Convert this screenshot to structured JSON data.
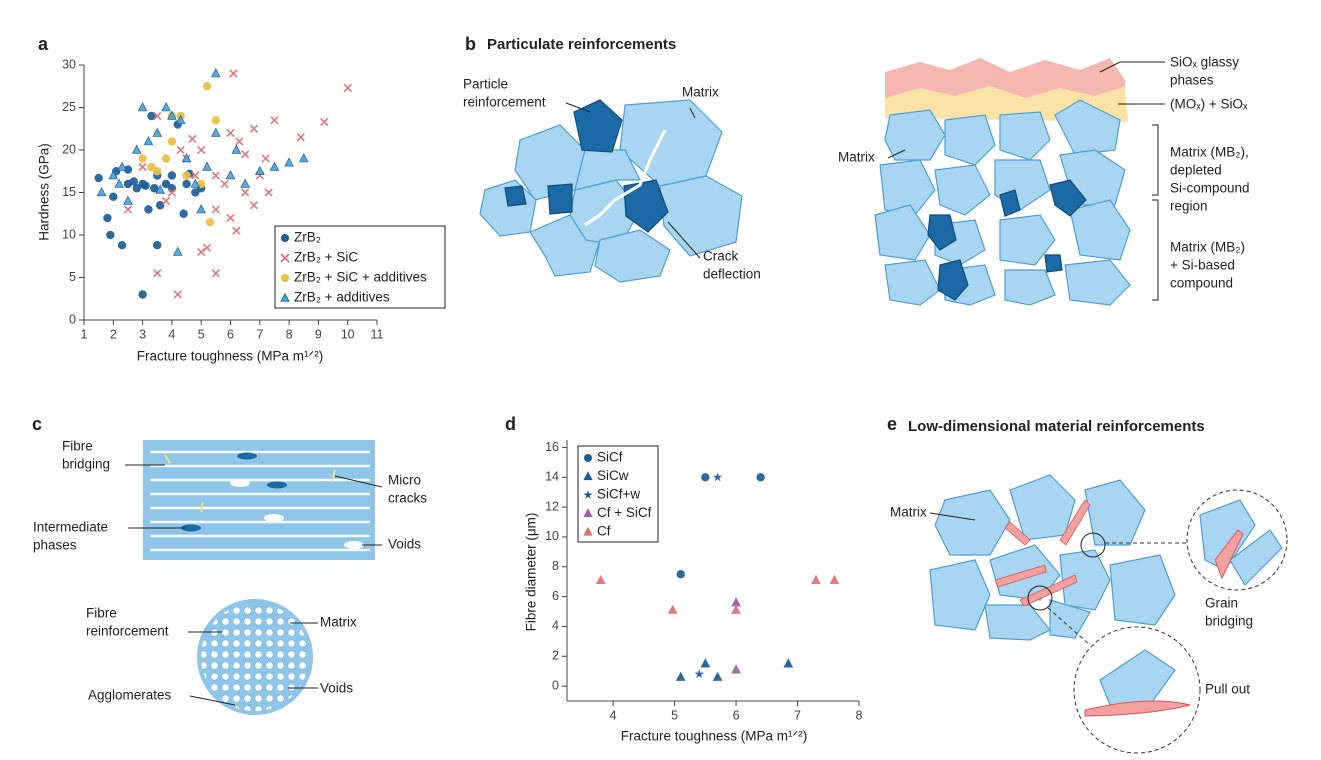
{
  "chart_data": [
    {
      "type": "scatter",
      "panel_label": "a",
      "xlabel": "Fracture toughness (MPa m¹ᐟ²)",
      "ylabel": "Hardness (GPa)",
      "xlim": [
        1,
        11
      ],
      "ylim": [
        0,
        30
      ],
      "xticks": [
        1,
        2,
        3,
        4,
        5,
        6,
        7,
        8,
        9,
        10,
        11
      ],
      "yticks": [
        0,
        5,
        10,
        15,
        20,
        25,
        30
      ],
      "series": [
        {
          "name": "ZrB₂",
          "color": "#1b5d98",
          "marker": "circle",
          "x": [
            1.5,
            1.8,
            1.9,
            2,
            2.1,
            2.3,
            2.5,
            2.5,
            2.8,
            3,
            3,
            3.2,
            3.3,
            3.4,
            3.5,
            3.6,
            3.8,
            4,
            4,
            4.2,
            4.4,
            4.5,
            4.8,
            5,
            3.1,
            2.7,
            3.5,
            4.6
          ],
          "values": [
            16.7,
            12,
            10,
            14.5,
            17.5,
            8.8,
            16,
            17.7,
            15.5,
            3,
            16,
            13,
            24,
            15.5,
            8.8,
            13.5,
            16,
            15.5,
            17,
            23,
            12.5,
            16,
            15,
            15.5,
            15.8,
            16.3,
            17,
            17.2
          ]
        },
        {
          "name": "ZrB₂ + SiC",
          "color": "#e06a6a",
          "marker": "x",
          "x": [
            2.5,
            3,
            3.5,
            3.5,
            3.8,
            4,
            4.2,
            4.3,
            4.5,
            4.8,
            5,
            5,
            5.2,
            5.5,
            5.5,
            5.8,
            6,
            6,
            6.1,
            6.2,
            6.3,
            6.5,
            6.8,
            7,
            7.2,
            7.5,
            8.4,
            9.2,
            10,
            6.5,
            5.5,
            4.7,
            6.8,
            7.3
          ],
          "values": [
            13,
            18,
            24,
            5.5,
            14,
            15,
            3,
            20,
            19,
            17,
            8,
            20,
            8.5,
            5.5,
            17,
            16,
            12,
            22,
            29,
            10.5,
            21,
            19.5,
            22.5,
            17,
            19,
            23.5,
            21.5,
            23.3,
            27.3,
            15,
            13,
            21.3,
            13.5,
            15
          ]
        },
        {
          "name": "ZrB₂ + SiC + additives",
          "color": "#e8c040",
          "marker": "circle",
          "x": [
            3,
            3.5,
            3.8,
            4,
            4,
            4.3,
            4.5,
            5,
            5.2,
            5.3,
            5.5,
            3.3
          ],
          "values": [
            19,
            17.5,
            19,
            21,
            24,
            24,
            17,
            16,
            27.5,
            11.5,
            23.5,
            18
          ]
        },
        {
          "name": "ZrB₂ + additives",
          "color": "#4aa3dc",
          "marker": "triangle",
          "x": [
            1.6,
            2,
            2.3,
            2.5,
            2.8,
            3,
            3.2,
            3.5,
            3.8,
            4,
            4.2,
            4.5,
            4.8,
            5,
            5.2,
            5.5,
            5.5,
            6,
            6.2,
            6.5,
            7,
            7.5,
            8,
            8.5,
            3.6,
            2.2,
            4.3
          ],
          "values": [
            15,
            17,
            18,
            14,
            20,
            25,
            21,
            22,
            25,
            24,
            8,
            19,
            16,
            13,
            18,
            29,
            22,
            17,
            20,
            16,
            17.5,
            18,
            18.5,
            19,
            15.3,
            16,
            23.5
          ]
        }
      ]
    },
    {
      "type": "scatter",
      "panel_label": "d",
      "xlabel": "Fracture toughness (MPa m¹ᐟ²)",
      "ylabel": "Fibre diameter (μm)",
      "xlim": [
        3.25,
        8
      ],
      "ylim": [
        -1,
        16.5
      ],
      "xticks": [
        4,
        5,
        6,
        7,
        8
      ],
      "yticks": [
        0,
        2,
        4,
        6,
        8,
        10,
        12,
        14,
        16
      ],
      "series": [
        {
          "name": "SiCf",
          "color": "#1b5d98",
          "marker": "circle",
          "x": [
            5.5,
            6.4,
            5.1
          ],
          "values": [
            14,
            14,
            7.5
          ]
        },
        {
          "name": "SiCw",
          "color": "#1b5d98",
          "marker": "triangle",
          "x": [
            5.1,
            5.5,
            5.7,
            6.85
          ],
          "values": [
            0.6,
            1.5,
            0.6,
            1.5
          ]
        },
        {
          "name": "SiCf+w",
          "color": "#1b5d98",
          "marker": "star",
          "x": [
            5.7,
            5.4
          ],
          "values": [
            14,
            0.8
          ]
        },
        {
          "name": "Cf + SiCf",
          "color": "#9b5fa8",
          "marker": "triangle",
          "x": [
            6,
            6
          ],
          "values": [
            5.6,
            1.1
          ]
        },
        {
          "name": "Cf",
          "color": "#e07070",
          "marker": "triangle",
          "x": [
            3.8,
            4.97,
            6,
            7.3,
            7.6
          ],
          "values": [
            7.1,
            5.1,
            5.1,
            7.1,
            7.1
          ]
        }
      ]
    }
  ],
  "panels": {
    "b": {
      "label": "b",
      "title": "Particulate reinforcements",
      "callouts": [
        [
          "Particle",
          "reinforcement"
        ],
        [
          "Matrix"
        ],
        [
          "Crack",
          "deflection"
        ],
        [
          "SiOₓ glassy",
          "phases"
        ],
        [
          "(MOₓ) + SiOₓ"
        ],
        [
          "Matrix"
        ],
        [
          "Matrix (MB₂),",
          "depleted",
          "Si-compound",
          "region"
        ],
        [
          "Matrix (MB₂)",
          "+ Si-based",
          "compound"
        ]
      ]
    },
    "c": {
      "label": "c",
      "callouts": [
        [
          "Fibre",
          "bridging"
        ],
        [
          "Micro",
          "cracks"
        ],
        [
          "Intermediate",
          "phases"
        ],
        [
          "Voids"
        ],
        [
          "Fibre",
          "reinforcement"
        ],
        [
          "Matrix"
        ],
        [
          "Agglomerates"
        ],
        [
          "Voids"
        ]
      ]
    },
    "e": {
      "label": "e",
      "title": "Low-dimensional material reinforcements",
      "callouts": [
        [
          "Matrix"
        ],
        [
          "Grain",
          "bridging"
        ],
        [
          "Pull out"
        ]
      ]
    }
  }
}
